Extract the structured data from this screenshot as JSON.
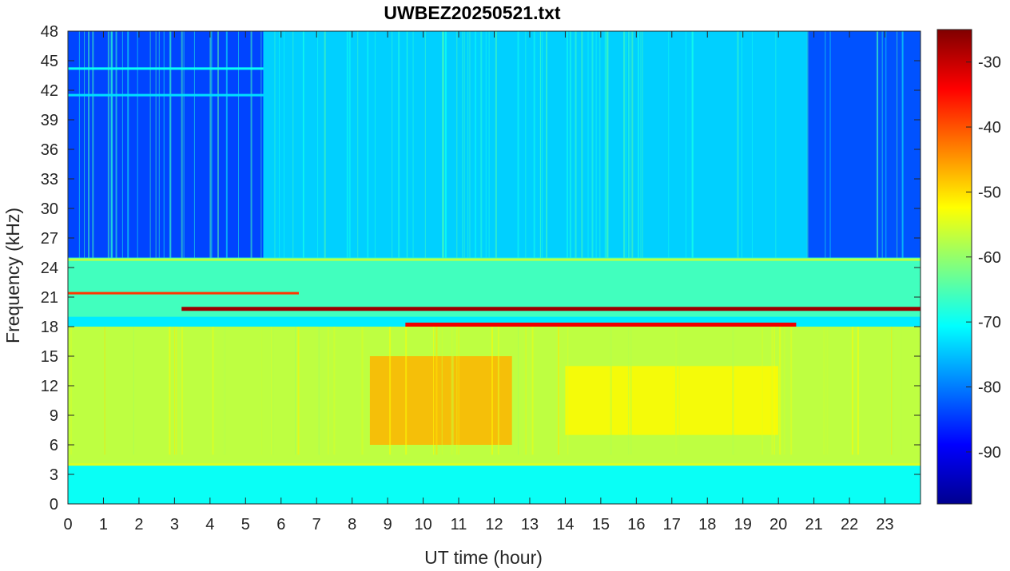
{
  "chart_data": {
    "type": "heatmap",
    "title": "UWBEZ20250521.txt",
    "xlabel": "UT time (hour)",
    "ylabel": "Frequency (kHz)",
    "xlim": [
      0,
      24
    ],
    "ylim": [
      0,
      48
    ],
    "x_ticks": [
      "0",
      "1",
      "2",
      "3",
      "4",
      "5",
      "6",
      "7",
      "8",
      "9",
      "10",
      "11",
      "12",
      "13",
      "14",
      "15",
      "16",
      "17",
      "18",
      "19",
      "20",
      "21",
      "22",
      "23"
    ],
    "y_ticks": [
      "0",
      "3",
      "6",
      "9",
      "12",
      "15",
      "18",
      "21",
      "24",
      "27",
      "30",
      "33",
      "36",
      "39",
      "42",
      "45",
      "48"
    ],
    "colorbar": {
      "colormap": "jet",
      "range": [
        -98,
        -25
      ],
      "ticks": [
        "-30",
        "-40",
        "-50",
        "-60",
        "-70",
        "-80",
        "-90"
      ],
      "tick_values": [
        -30,
        -40,
        -50,
        -60,
        -70,
        -80,
        -90
      ]
    },
    "intensity_regions": [
      {
        "desc": "background high band night",
        "t": [
          0,
          5.5
        ],
        "f": [
          25,
          48
        ],
        "level": -84
      },
      {
        "desc": "background high band night",
        "t": [
          20.8,
          24
        ],
        "f": [
          25,
          48
        ],
        "level": -83
      },
      {
        "desc": "background high band day",
        "t": [
          5.5,
          20.8
        ],
        "f": [
          25,
          48
        ],
        "level": -74
      },
      {
        "desc": "mid band",
        "t": [
          0,
          24
        ],
        "f": [
          19,
          25
        ],
        "level": -66
      },
      {
        "desc": "sferic band",
        "t": [
          0,
          24
        ],
        "f": [
          4,
          18
        ],
        "level": -57
      },
      {
        "desc": "sferic maximum",
        "t": [
          8.5,
          12.5
        ],
        "f": [
          6,
          15
        ],
        "level": -47
      },
      {
        "desc": "sferic secondary",
        "t": [
          14,
          20
        ],
        "f": [
          7,
          14
        ],
        "level": -52
      },
      {
        "desc": "low band",
        "t": [
          0,
          24
        ],
        "f": [
          0,
          4
        ],
        "level": -70
      }
    ],
    "narrowband_lines": [
      {
        "freq": 19.8,
        "t": [
          3.2,
          24
        ],
        "level": -27
      },
      {
        "freq": 18.2,
        "t": [
          9.5,
          20.5
        ],
        "level": -33
      },
      {
        "freq": 21.4,
        "t": [
          0,
          6.5
        ],
        "level": -38
      },
      {
        "freq": 24.8,
        "t": [
          0,
          24
        ],
        "level": -57
      },
      {
        "freq": 4.0,
        "t": [
          0,
          24
        ],
        "level": -55
      },
      {
        "freq": 44.2,
        "t": [
          0,
          5.5
        ],
        "level": -70
      },
      {
        "freq": 41.5,
        "t": [
          0,
          5.5
        ],
        "level": -73
      }
    ]
  }
}
